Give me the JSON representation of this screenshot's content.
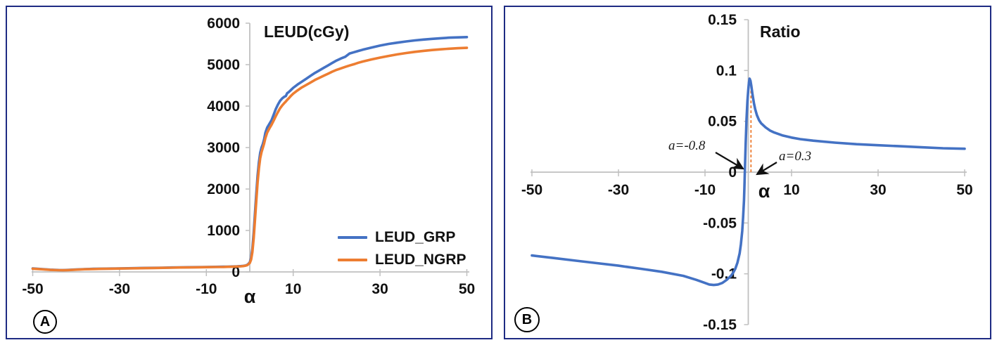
{
  "panels": {
    "a": {
      "badge": "A"
    },
    "b": {
      "badge": "B"
    }
  },
  "colors": {
    "series_blue": "#4472C4",
    "series_orange": "#ED7D31",
    "axis_gray": "#C0C0C0",
    "panel_border_navy": "#1E2B83",
    "annotation_black": "#1A1A1A"
  },
  "chart_data": [
    {
      "type": "line",
      "title": "LEUD(cGy)",
      "xlabel": "α",
      "ylabel": "",
      "xlim": [
        -50,
        50
      ],
      "ylim": [
        0,
        6000
      ],
      "x_ticks": [
        -50,
        -30,
        -10,
        10,
        30,
        50
      ],
      "x_tick_labels": [
        "-50",
        "-30",
        "-10",
        "10",
        "30",
        "50"
      ],
      "y_ticks": [
        0,
        1000,
        2000,
        3000,
        4000,
        5000,
        6000
      ],
      "y_tick_labels": [
        "0",
        "1000",
        "2000",
        "3000",
        "4000",
        "5000",
        "6000"
      ],
      "grid": false,
      "legend_position": "lower right",
      "series": [
        {
          "name": "LEUD_GRP",
          "color": "#4472C4",
          "x": [
            -50,
            -48,
            -46,
            -44,
            -43,
            -42,
            -40,
            -38,
            -36,
            -34,
            -32,
            -30,
            -28,
            -26,
            -24,
            -22,
            -20,
            -18,
            -16,
            -14,
            -12,
            -10,
            -8,
            -6,
            -5,
            -4,
            -3,
            -2,
            -1.5,
            -1,
            -0.6,
            -0.3,
            0,
            0.3,
            0.6,
            0.9,
            1.2,
            1.5,
            1.8,
            2.1,
            2.4,
            2.7,
            3,
            3.3,
            3.6,
            4,
            4.5,
            5,
            5.5,
            6,
            6.5,
            7,
            7.5,
            8,
            8.3,
            8.6,
            9,
            9.5,
            10,
            11,
            12,
            13,
            14,
            15,
            16,
            17,
            18,
            19,
            20,
            21,
            22,
            23,
            24,
            25,
            26,
            28,
            30,
            32,
            34,
            36,
            38,
            40,
            42,
            44,
            46,
            48,
            50
          ],
          "y": [
            85,
            70,
            55,
            46,
            44,
            48,
            58,
            68,
            74,
            78,
            82,
            85,
            88,
            92,
            96,
            99,
            102,
            106,
            110,
            113,
            116,
            119,
            122,
            125,
            127,
            130,
            134,
            140,
            145,
            155,
            170,
            195,
            230,
            340,
            560,
            950,
            1420,
            1900,
            2320,
            2650,
            2870,
            3000,
            3080,
            3200,
            3360,
            3480,
            3570,
            3660,
            3790,
            3930,
            4040,
            4130,
            4190,
            4230,
            4240,
            4310,
            4340,
            4390,
            4440,
            4520,
            4590,
            4660,
            4730,
            4800,
            4860,
            4920,
            4980,
            5040,
            5100,
            5150,
            5190,
            5270,
            5300,
            5330,
            5360,
            5410,
            5460,
            5500,
            5530,
            5560,
            5585,
            5605,
            5622,
            5638,
            5650,
            5658,
            5665
          ]
        },
        {
          "name": "LEUD_NGRP",
          "color": "#ED7D31",
          "x": [
            -50,
            -48,
            -46,
            -44,
            -43,
            -42,
            -40,
            -38,
            -36,
            -34,
            -32,
            -30,
            -28,
            -26,
            -24,
            -22,
            -20,
            -18,
            -16,
            -14,
            -12,
            -10,
            -8,
            -6,
            -5,
            -4,
            -3,
            -2,
            -1.5,
            -1,
            -0.6,
            -0.3,
            0,
            0.3,
            0.6,
            0.9,
            1.2,
            1.5,
            1.8,
            2.1,
            2.4,
            2.7,
            3,
            3.3,
            3.6,
            4,
            4.5,
            5,
            5.5,
            6,
            6.5,
            7,
            7.5,
            8,
            8.3,
            8.6,
            9,
            9.5,
            10,
            11,
            12,
            13,
            14,
            15,
            16,
            17,
            18,
            19,
            20,
            21,
            22,
            23,
            24,
            25,
            26,
            28,
            30,
            32,
            34,
            36,
            38,
            40,
            42,
            44,
            46,
            48,
            50
          ],
          "y": [
            78,
            64,
            50,
            42,
            40,
            44,
            54,
            64,
            70,
            74,
            78,
            81,
            84,
            88,
            92,
            95,
            98,
            102,
            106,
            109,
            112,
            115,
            118,
            121,
            123,
            126,
            130,
            136,
            141,
            150,
            163,
            185,
            215,
            300,
            480,
            820,
            1260,
            1720,
            2160,
            2500,
            2740,
            2890,
            2990,
            3100,
            3230,
            3360,
            3460,
            3550,
            3650,
            3760,
            3860,
            3950,
            4020,
            4080,
            4110,
            4150,
            4190,
            4250,
            4300,
            4380,
            4450,
            4510,
            4570,
            4630,
            4680,
            4730,
            4780,
            4830,
            4875,
            4910,
            4945,
            4980,
            5010,
            5045,
            5075,
            5125,
            5170,
            5210,
            5248,
            5280,
            5308,
            5332,
            5352,
            5370,
            5385,
            5396,
            5405
          ]
        }
      ],
      "panel_label": "A"
    },
    {
      "type": "line",
      "title": "Ratio",
      "xlabel": "α",
      "ylabel": "",
      "xlim": [
        -50,
        50
      ],
      "ylim": [
        -0.15,
        0.15
      ],
      "x_ticks": [
        -50,
        -30,
        -10,
        10,
        30,
        50
      ],
      "x_tick_labels": [
        "-50",
        "-30",
        "-10",
        "10",
        "30",
        "50"
      ],
      "y_ticks": [
        -0.15,
        -0.1,
        -0.05,
        0,
        0.05,
        0.1,
        0.15
      ],
      "y_tick_labels": [
        "-0.15",
        "-0.1",
        "-0.05",
        "0",
        "0.05",
        "0.1",
        "0.15"
      ],
      "grid": false,
      "series": [
        {
          "name": "Ratio",
          "color": "#4472C4",
          "x": [
            -50,
            -45,
            -40,
            -35,
            -30,
            -25,
            -20,
            -15,
            -12,
            -10,
            -9,
            -8,
            -7,
            -6,
            -5,
            -4,
            -3.5,
            -3,
            -2.5,
            -2,
            -1.7,
            -1.4,
            -1.2,
            -1,
            -0.9,
            -0.8,
            -0.6,
            -0.4,
            -0.2,
            0,
            0.15,
            0.3,
            0.5,
            0.7,
            1,
            1.3,
            1.6,
            2,
            2.5,
            3,
            4,
            5,
            6,
            8,
            10,
            12,
            15,
            20,
            25,
            30,
            35,
            40,
            45,
            50
          ],
          "y": [
            -0.082,
            -0.0845,
            -0.087,
            -0.0895,
            -0.092,
            -0.095,
            -0.098,
            -0.102,
            -0.106,
            -0.109,
            -0.1105,
            -0.111,
            -0.1105,
            -0.109,
            -0.106,
            -0.102,
            -0.099,
            -0.095,
            -0.089,
            -0.08,
            -0.071,
            -0.058,
            -0.045,
            -0.028,
            -0.015,
            0,
            0.028,
            0.052,
            0.07,
            0.081,
            0.088,
            0.092,
            0.09,
            0.085,
            0.076,
            0.068,
            0.062,
            0.056,
            0.051,
            0.048,
            0.044,
            0.041,
            0.039,
            0.036,
            0.034,
            0.0325,
            0.031,
            0.029,
            0.0275,
            0.0265,
            0.0255,
            0.0245,
            0.0235,
            0.023
          ]
        }
      ],
      "annotations": [
        {
          "text": "a=-0.8",
          "target_alpha": -0.8
        },
        {
          "text": "a=0.3",
          "target_alpha": 0.3
        }
      ],
      "marker_line": {
        "alpha": 0.3,
        "top_value": 0.092,
        "color": "#ED7D31",
        "style": "dashed"
      },
      "panel_label": "B"
    }
  ]
}
